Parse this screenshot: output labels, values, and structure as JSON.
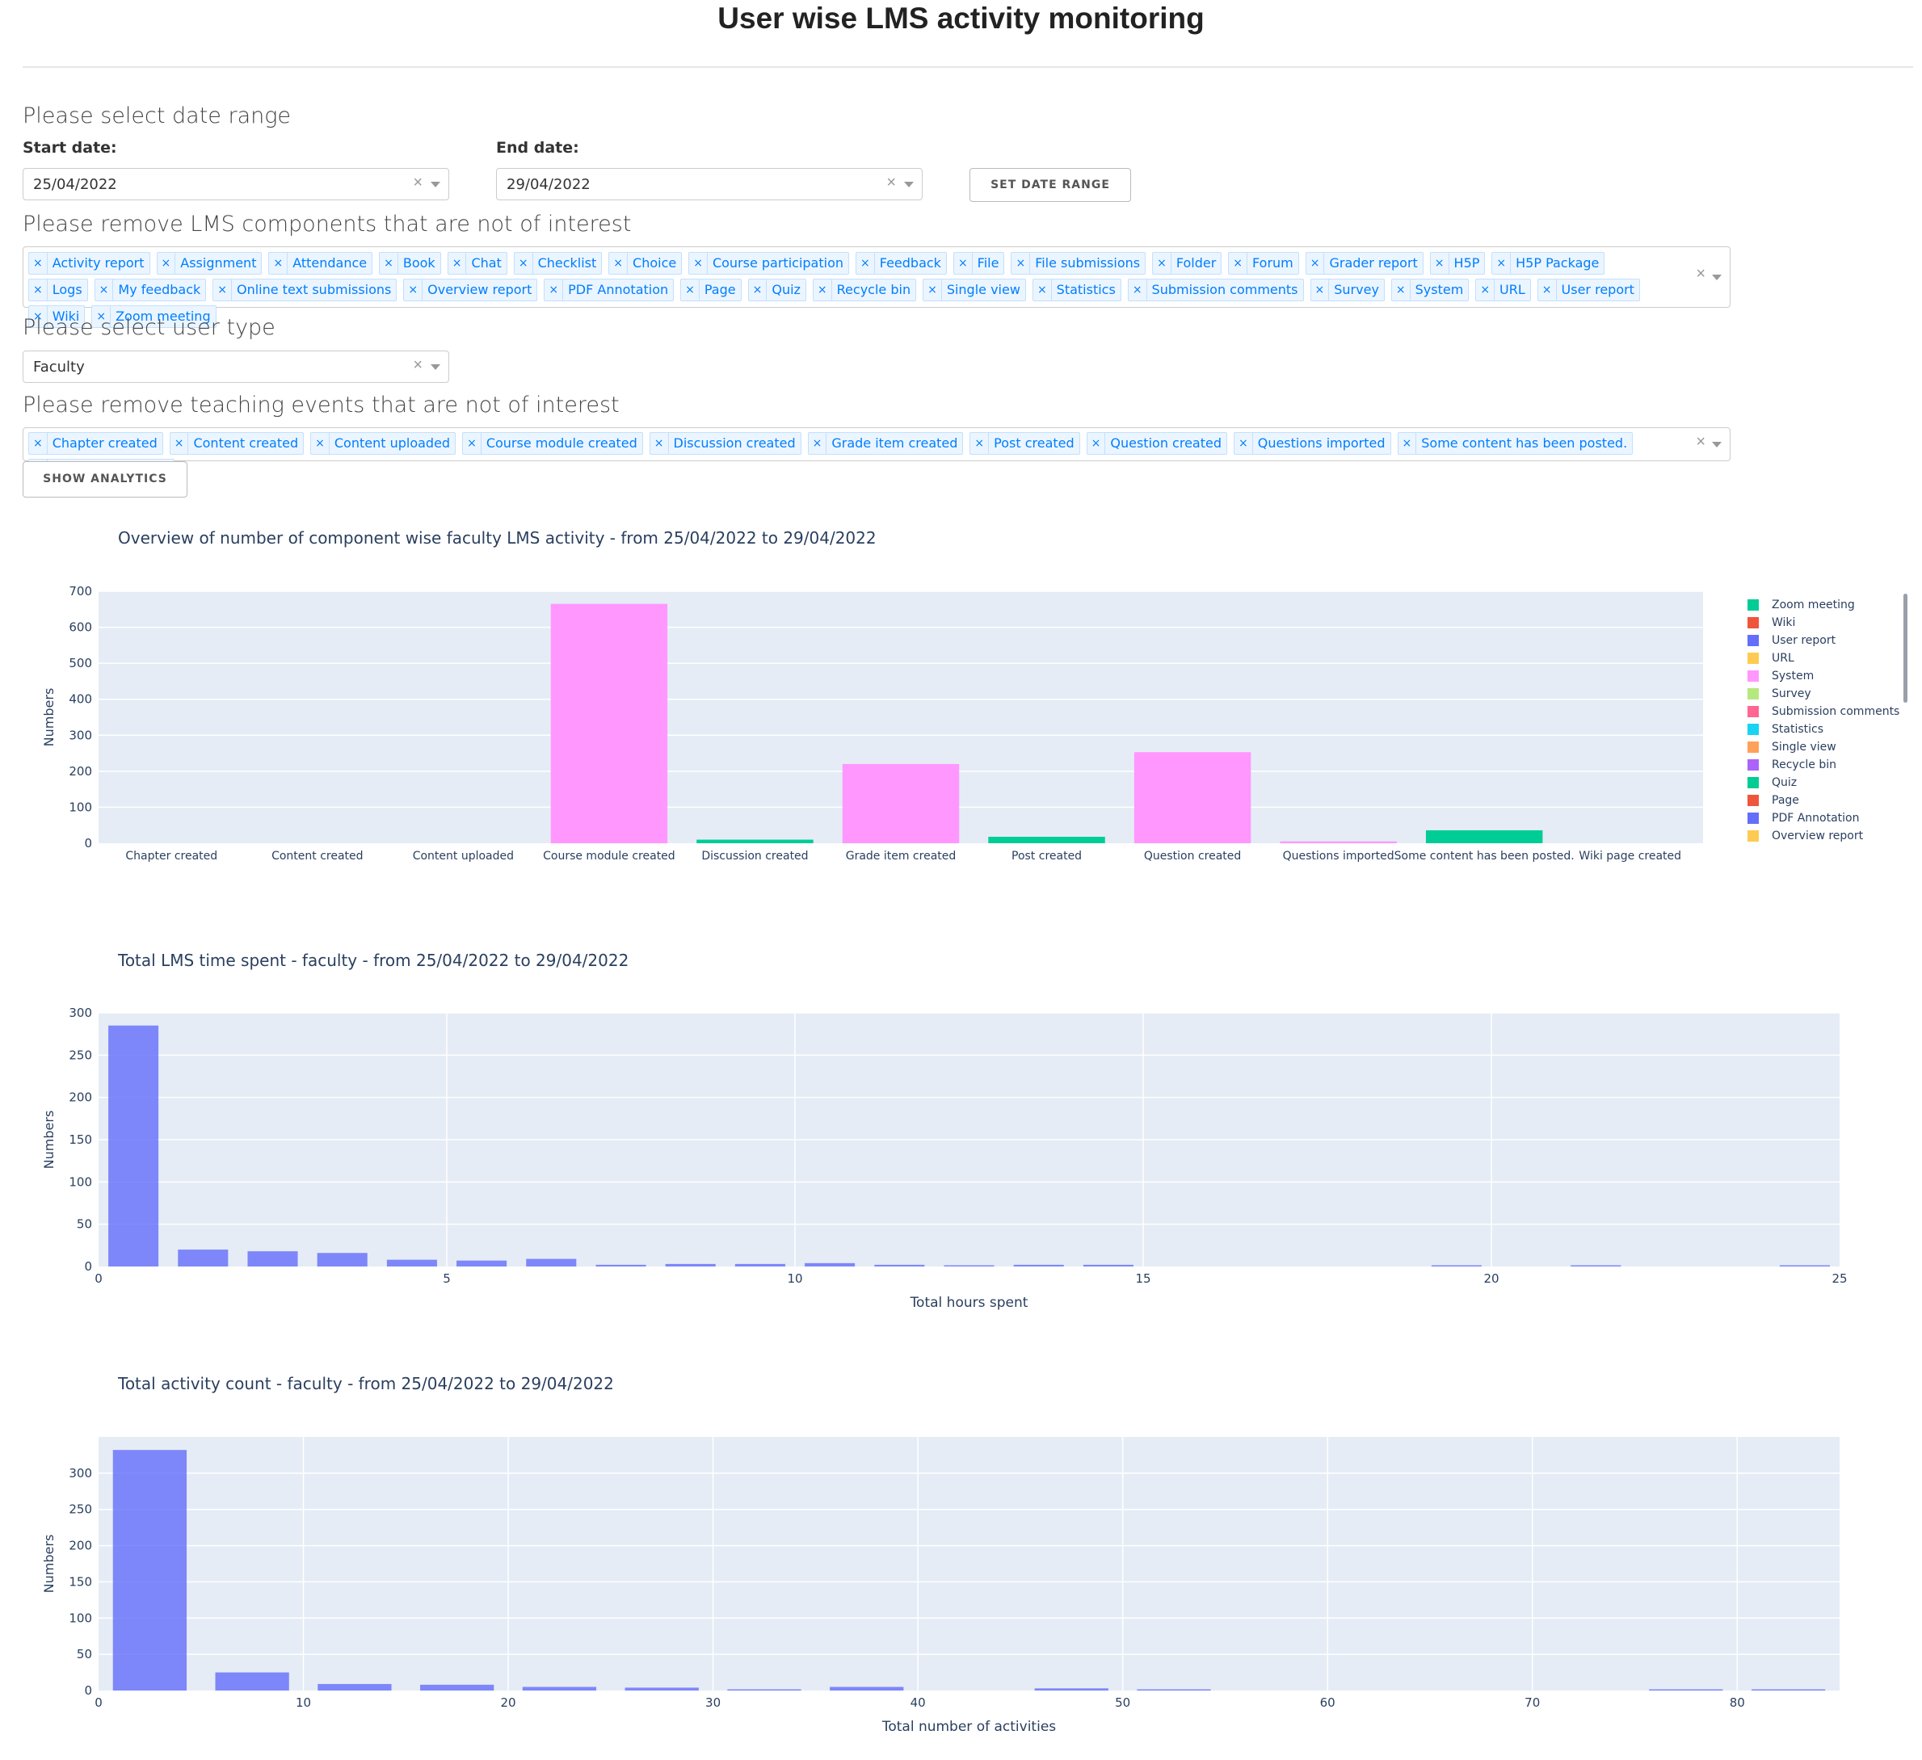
{
  "page": {
    "title": "User wise LMS activity monitoring"
  },
  "date_range": {
    "heading": "Please select date range",
    "start_label": "Start date:",
    "start_value": "25/04/2022",
    "end_label": "End date:",
    "end_value": "29/04/2022",
    "set_button": "SET DATE RANGE"
  },
  "components": {
    "heading": "Please remove LMS components that are not of interest",
    "items": [
      "Activity report",
      "Assignment",
      "Attendance",
      "Book",
      "Chat",
      "Checklist",
      "Choice",
      "Course participation",
      "Feedback",
      "File",
      "File submissions",
      "Folder",
      "Forum",
      "Grader report",
      "H5P",
      "H5P Package",
      "Logs",
      "My feedback",
      "Online text submissions",
      "Overview report",
      "PDF Annotation",
      "Page",
      "Quiz",
      "Recycle bin",
      "Single view",
      "Statistics",
      "Submission comments",
      "Survey",
      "System",
      "URL",
      "User report",
      "Wiki",
      "Zoom meeting"
    ]
  },
  "user_type": {
    "heading": "Please select user type",
    "value": "Faculty"
  },
  "events": {
    "heading": "Please remove teaching events that are not of interest",
    "items": [
      "Chapter created",
      "Content created",
      "Content uploaded",
      "Course module created",
      "Discussion created",
      "Grade item created",
      "Post created",
      "Question created",
      "Questions imported",
      "Some content has been posted.",
      "Wiki page created"
    ],
    "show_button": "SHOW ANALYTICS"
  },
  "icons": {
    "clear": "×",
    "chip_remove": "×"
  },
  "colors": {
    "plot_bg": "#e5ecf6",
    "system": "#ff97ff",
    "quiz": "#00cc96",
    "hist": "#636efa"
  },
  "chart_data": [
    {
      "type": "bar",
      "title": "Overview of number of component wise faculty LMS activity - from 25/04/2022 to 29/04/2022",
      "ylabel": "Numbers",
      "xlabel": "",
      "ylim": [
        0,
        700
      ],
      "yticks": [
        0,
        100,
        200,
        300,
        400,
        500,
        600,
        700
      ],
      "categories": [
        "Chapter created",
        "Content created",
        "Content uploaded",
        "Course module created",
        "Discussion created",
        "Grade item created",
        "Post created",
        "Question created",
        "Questions imported",
        "Some content has been posted.",
        "Wiki page created"
      ],
      "series": [
        {
          "name": "System",
          "color": "#ff97ff",
          "values": [
            0,
            0,
            0,
            665,
            0,
            220,
            0,
            253,
            5,
            0,
            0
          ]
        },
        {
          "name": "Quiz",
          "color": "#00cc96",
          "values": [
            0,
            0,
            0,
            0,
            10,
            0,
            18,
            0,
            0,
            36,
            0
          ]
        }
      ],
      "legend": [
        {
          "name": "Zoom meeting",
          "color": "#00cc96"
        },
        {
          "name": "Wiki",
          "color": "#ef553b"
        },
        {
          "name": "User report",
          "color": "#636efa"
        },
        {
          "name": "URL",
          "color": "#fecb52"
        },
        {
          "name": "System",
          "color": "#ff97ff"
        },
        {
          "name": "Survey",
          "color": "#b6e880"
        },
        {
          "name": "Submission comments",
          "color": "#ff6692"
        },
        {
          "name": "Statistics",
          "color": "#19d3f3"
        },
        {
          "name": "Single view",
          "color": "#ffa15a"
        },
        {
          "name": "Recycle bin",
          "color": "#ab63fa"
        },
        {
          "name": "Quiz",
          "color": "#00cc96"
        },
        {
          "name": "Page",
          "color": "#ef553b"
        },
        {
          "name": "PDF Annotation",
          "color": "#636efa"
        },
        {
          "name": "Overview report",
          "color": "#fecb52"
        }
      ],
      "legend_position": "right",
      "grid": true
    },
    {
      "type": "bar",
      "title": "Total LMS time spent - faculty - from 25/04/2022 to 29/04/2022",
      "xlabel": "Total hours spent",
      "ylabel": "Numbers",
      "xlim": [
        0,
        25
      ],
      "ylim": [
        0,
        300
      ],
      "xticks": [
        0,
        5,
        10,
        15,
        20,
        25
      ],
      "yticks": [
        0,
        50,
        100,
        150,
        200,
        250,
        300
      ],
      "bin_width": 1,
      "bins": [
        0,
        1,
        2,
        3,
        4,
        5,
        6,
        7,
        8,
        9,
        10,
        11,
        12,
        13,
        14,
        19,
        21,
        24
      ],
      "values": [
        285,
        20,
        18,
        16,
        8,
        7,
        9,
        2,
        3,
        3,
        4,
        2,
        1,
        2,
        2,
        1,
        1,
        1
      ],
      "grid": true
    },
    {
      "type": "bar",
      "title": "Total activity count - faculty - from 25/04/2022 to 29/04/2022",
      "xlabel": "Total number of activities",
      "ylabel": "Numbers",
      "xlim": [
        0,
        85
      ],
      "ylim": [
        0,
        350
      ],
      "xticks": [
        0,
        10,
        20,
        30,
        40,
        50,
        60,
        70,
        80
      ],
      "yticks": [
        0,
        50,
        100,
        150,
        200,
        250,
        300
      ],
      "bin_width": 5,
      "bins": [
        0,
        5,
        10,
        15,
        20,
        25,
        30,
        35,
        45,
        50,
        75,
        80
      ],
      "values": [
        332,
        25,
        9,
        8,
        5,
        4,
        1,
        5,
        3,
        1,
        1,
        1
      ],
      "grid": true
    }
  ]
}
